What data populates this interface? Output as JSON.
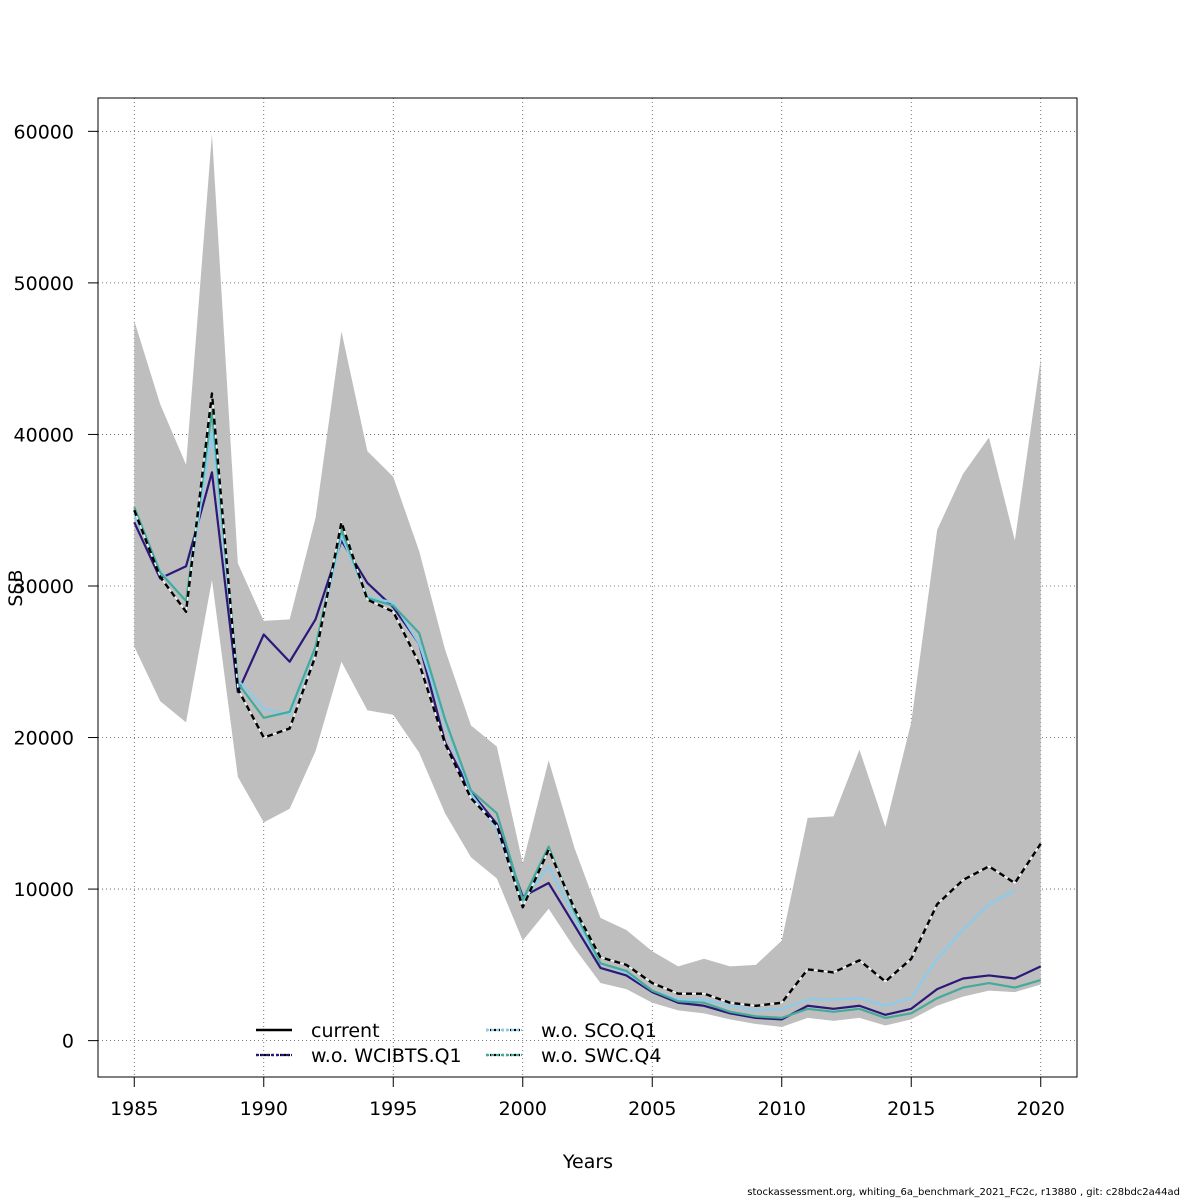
{
  "chart_data": {
    "type": "line",
    "title": "",
    "xlabel": "Years",
    "ylabel": "SSB",
    "xlim": [
      1983.6,
      2021.4
    ],
    "ylim": [
      -2400,
      62200
    ],
    "x_ticks": [
      1985,
      1990,
      1995,
      2000,
      2005,
      2010,
      2015,
      2020
    ],
    "y_ticks": [
      0,
      10000,
      20000,
      30000,
      40000,
      50000,
      60000
    ],
    "grid": true,
    "legend_position": "bottom-center",
    "x": [
      1985,
      1986,
      1987,
      1988,
      1989,
      1990,
      1991,
      1992,
      1993,
      1994,
      1995,
      1996,
      1997,
      1998,
      1999,
      2000,
      2001,
      2002,
      2003,
      2004,
      2005,
      2006,
      2007,
      2008,
      2009,
      2010,
      2011,
      2012,
      2013,
      2014,
      2015,
      2016,
      2017,
      2018,
      2019,
      2020
    ],
    "confidence_band": {
      "color": "#bebebe",
      "upper": [
        47500,
        42000,
        38000,
        59800,
        31500,
        27700,
        27800,
        34500,
        46800,
        38900,
        37200,
        32300,
        25800,
        20800,
        19400,
        11700,
        18500,
        12700,
        8100,
        7300,
        5900,
        4900,
        5400,
        4900,
        5000,
        6600,
        14700,
        14800,
        19200,
        14100,
        21000,
        33700,
        37400,
        39800,
        33000,
        45000
      ],
      "lower": [
        26000,
        22400,
        21000,
        30400,
        17400,
        14400,
        15300,
        19100,
        25000,
        21800,
        21500,
        19000,
        15000,
        12100,
        10700,
        6600,
        8700,
        6100,
        3800,
        3400,
        2500,
        2000,
        1800,
        1400,
        1100,
        900,
        1500,
        1300,
        1500,
        1000,
        1400,
        2300,
        2900,
        3300,
        3200,
        3700
      ]
    },
    "series": [
      {
        "name": "current",
        "color": "#000000",
        "dash": "6,4",
        "width": 2.4,
        "values": [
          35000,
          30600,
          28300,
          42700,
          23200,
          20000,
          20600,
          25400,
          34200,
          29100,
          28300,
          24900,
          19600,
          16000,
          14200,
          8800,
          12600,
          8700,
          5500,
          5000,
          3800,
          3100,
          3100,
          2500,
          2300,
          2500,
          4700,
          4500,
          5300,
          3900,
          5400,
          9000,
          10600,
          11500,
          10400,
          13000
        ]
      },
      {
        "name": "w.o. WCIBTS.Q1",
        "color": "#2b1879",
        "dash": "",
        "width": 2.2,
        "values": [
          34200,
          30500,
          31300,
          37500,
          23000,
          26800,
          25000,
          27800,
          33000,
          30200,
          28600,
          26200,
          19700,
          16400,
          14300,
          9500,
          10400,
          7600,
          4800,
          4300,
          3200,
          2500,
          2300,
          1800,
          1500,
          1400,
          2300,
          2100,
          2300,
          1700,
          2100,
          3400,
          4100,
          4300,
          4100,
          4900
        ]
      },
      {
        "name": "w.o. SCO.Q1",
        "color": "#88ccee",
        "dash": "",
        "width": 2.2,
        "values": [
          34800,
          31000,
          29000,
          40200,
          23800,
          21900,
          21500,
          25900,
          33300,
          29300,
          28900,
          26200,
          21000,
          16300,
          14000,
          9200,
          11500,
          8100,
          5100,
          4500,
          3300,
          2700,
          2700,
          2300,
          2000,
          2100,
          2700,
          2700,
          2800,
          2300,
          2800,
          5400,
          7300,
          9000,
          9900,
          null
        ]
      },
      {
        "name": "w.o. SWC.Q4",
        "color": "#44aa99",
        "dash": "",
        "width": 2.2,
        "values": [
          35200,
          30900,
          29000,
          41500,
          23600,
          21300,
          21700,
          26000,
          33700,
          29200,
          28700,
          26900,
          21200,
          16500,
          15000,
          9300,
          12800,
          8500,
          5100,
          4600,
          3300,
          2600,
          2500,
          1900,
          1600,
          1500,
          2100,
          1900,
          2100,
          1500,
          1800,
          2800,
          3500,
          3800,
          3500,
          4000
        ]
      }
    ]
  },
  "footer": "stockassessment.org, whiting_6a_benchmark_2021_FC2c, r13880 , git: c28bdc2a44ad"
}
